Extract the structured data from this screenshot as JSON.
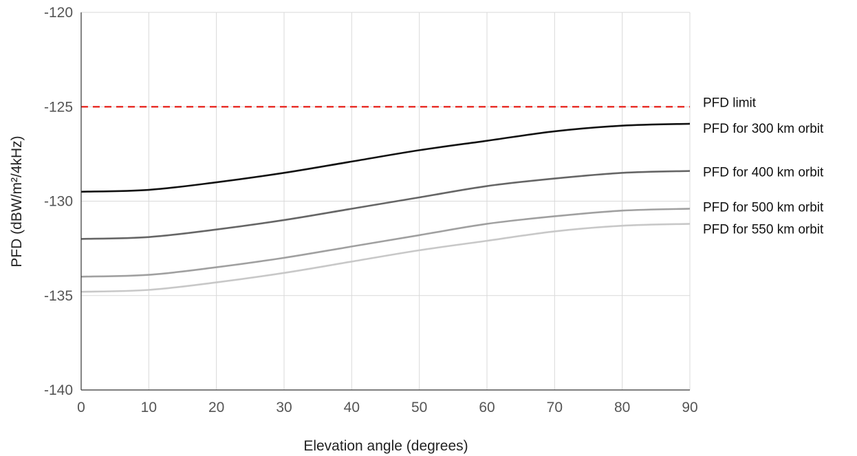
{
  "chart_data": {
    "type": "line",
    "xlabel": "Elevation angle (degrees)",
    "ylabel": "PFD (dBW/m²/4kHz)",
    "xlim": [
      0,
      90
    ],
    "ylim": [
      -140,
      -120
    ],
    "x_ticks": [
      "0",
      "10",
      "20",
      "30",
      "40",
      "50",
      "60",
      "70",
      "80",
      "90"
    ],
    "y_ticks": [
      "-120",
      "-125",
      "-130",
      "-135",
      "-140"
    ],
    "grid": true,
    "legend_placement": "right, labels at line ends",
    "x": [
      0,
      10,
      20,
      30,
      40,
      50,
      60,
      70,
      80,
      90
    ],
    "series": [
      {
        "name": "PFD limit",
        "color": "#e8302a",
        "dashed": true,
        "values": [
          -125,
          -125,
          -125,
          -125,
          -125,
          -125,
          -125,
          -125,
          -125,
          -125
        ]
      },
      {
        "name": "PFD for 300 km orbit",
        "color": "#111111",
        "dashed": false,
        "values": [
          -129.5,
          -129.4,
          -129.0,
          -128.5,
          -127.9,
          -127.3,
          -126.8,
          -126.3,
          -126.0,
          -125.9
        ]
      },
      {
        "name": "PFD for 400 km orbit",
        "color": "#666666",
        "dashed": false,
        "values": [
          -132.0,
          -131.9,
          -131.5,
          -131.0,
          -130.4,
          -129.8,
          -129.2,
          -128.8,
          -128.5,
          -128.4
        ]
      },
      {
        "name": "PFD for 500 km orbit",
        "color": "#a0a0a0",
        "dashed": false,
        "values": [
          -134.0,
          -133.9,
          -133.5,
          -133.0,
          -132.4,
          -131.8,
          -131.2,
          -130.8,
          -130.5,
          -130.4
        ]
      },
      {
        "name": "PFD for 550 km orbit",
        "color": "#c8c8c8",
        "dashed": false,
        "values": [
          -134.8,
          -134.7,
          -134.3,
          -133.8,
          -133.2,
          -132.6,
          -132.1,
          -131.6,
          -131.3,
          -131.2
        ]
      }
    ]
  }
}
